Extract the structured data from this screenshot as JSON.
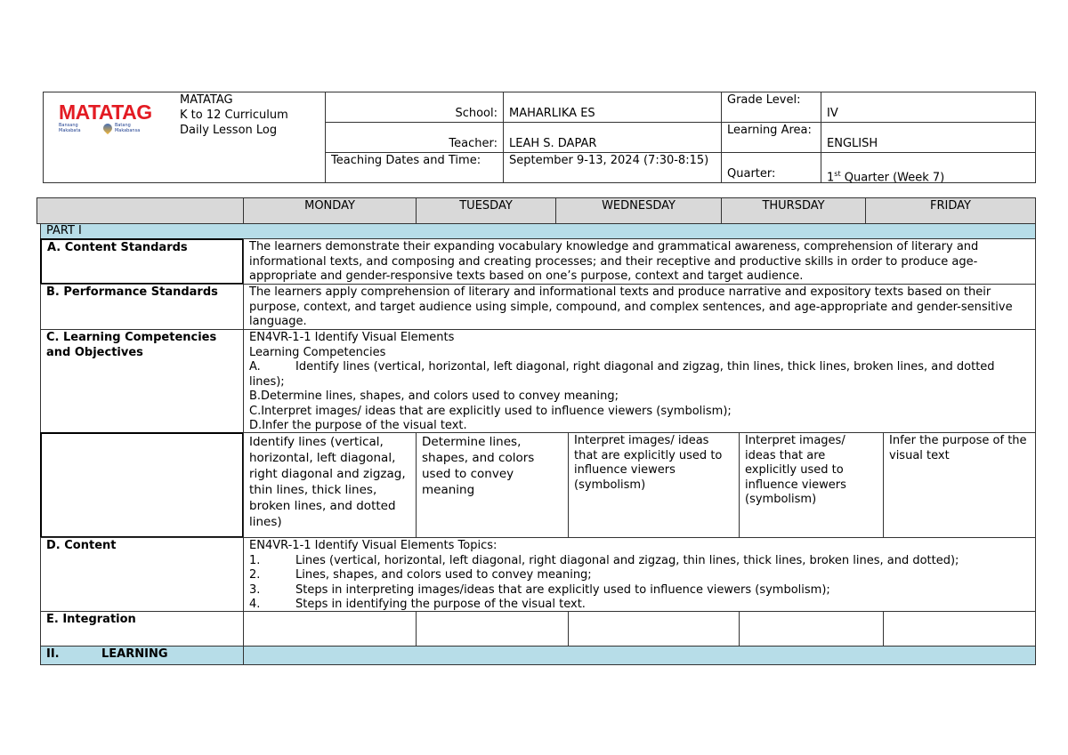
{
  "header": {
    "logo_text": "MATATAG",
    "logo_tagline_left": "Bansang Makabata",
    "logo_tagline_right": "Batang Makabansa",
    "title_lines": [
      "MATATAG",
      "K to 12 Curriculum",
      "Daily Lesson Log"
    ],
    "school_label": "School:",
    "school": "MAHARLIKA ES",
    "grade_label": "Grade Level:",
    "grade": "IV",
    "teacher_label": "Teacher:",
    "teacher": "LEAH S. DAPAR",
    "area_label": "Learning Area:",
    "area": "ENGLISH",
    "dates_label": "Teaching Dates and Time:",
    "dates": "September 9-13, 2024 (7:30-8:15)",
    "quarter_label": "Quarter:",
    "quarter_num": "1",
    "quarter_sup": "st",
    "quarter_rest": " Quarter (Week 7)"
  },
  "days": [
    "MONDAY",
    "TUESDAY",
    "WEDNESDAY",
    "THURSDAY",
    "FRIDAY"
  ],
  "part1": "PART I",
  "a": {
    "label": "A. Content Standards",
    "text": "The learners demonstrate their expanding vocabulary knowledge and grammatical awareness, comprehension of literary and informational texts, and composing and creating processes; and their receptive and productive skills in order to produce age-appropriate and gender-responsive texts based on one’s purpose, context and target audience."
  },
  "b": {
    "label": "B. Performance Standards",
    "text": "The learners apply comprehension of literary and informational texts and produce narrative and expository texts based on their purpose, context, and target audience using simple, compound, and complex sentences, and age-appropriate and gender-sensitive language."
  },
  "c": {
    "label": "C. Learning Competencies and Objectives",
    "lines": [
      "EN4VR-1-1 Identify Visual Elements",
      "Learning Competencies"
    ],
    "item_a_num": "A.",
    "item_a": "Identify lines (vertical, horizontal, left diagonal, right diagonal and zigzag, thin lines, thick lines, broken lines, and dotted lines);",
    "item_b": "B.Determine lines, shapes, and colors used to convey meaning;",
    "item_c": "C.Interpret images/ ideas that are explicitly used to influence viewers (symbolism);",
    "item_d": "D.Infer the purpose of the visual text.",
    "daily": [
      "Identify lines (vertical, horizontal, left diagonal, right diagonal and zigzag, thin lines, thick lines, broken lines, and dotted lines)",
      "Determine lines, shapes, and colors used to convey meaning",
      "Interpret images/ ideas that are explicitly used to influence viewers (symbolism)",
      "Interpret images/ ideas that are explicitly used to influence viewers (symbolism)",
      "Infer the purpose of the visual text"
    ]
  },
  "d": {
    "label": "D. Content",
    "title": "EN4VR-1-1 Identify Visual Elements Topics:",
    "items": [
      {
        "n": "1.",
        "t": "Lines (vertical, horizontal, left diagonal, right diagonal and zigzag, thin lines, thick lines, broken lines, and dotted);"
      },
      {
        "n": "2.",
        "t": "Lines, shapes, and colors used to convey meaning;"
      },
      {
        "n": "3.",
        "t": "Steps in interpreting images/ideas that are explicitly used to influence viewers (symbolism);"
      },
      {
        "n": "4.",
        "t": "Steps in identifying the purpose of the visual text."
      }
    ]
  },
  "e": {
    "label": "E. Integration"
  },
  "ii": {
    "num": "II.",
    "label": "LEARNING"
  }
}
